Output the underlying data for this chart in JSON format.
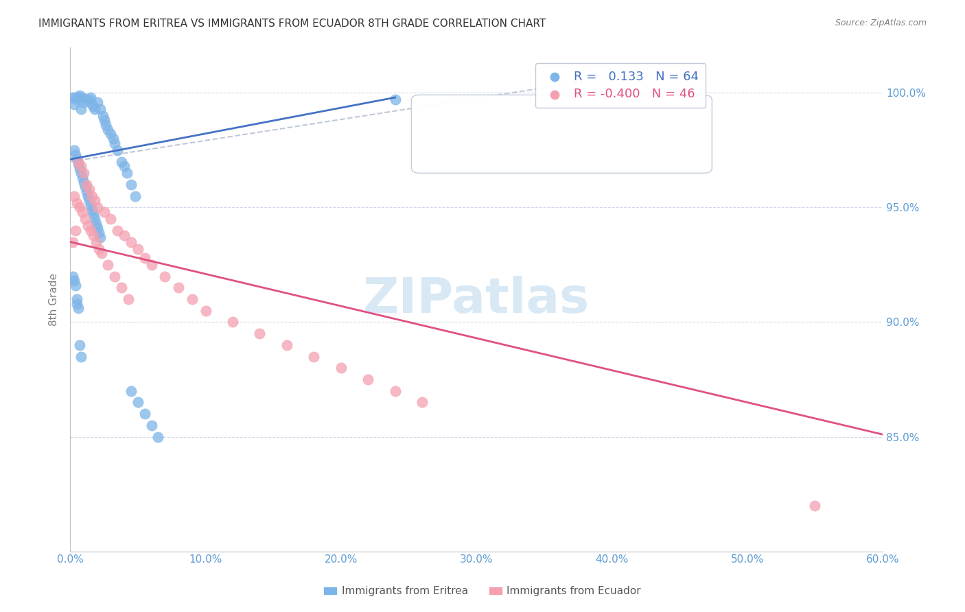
{
  "title": "IMMIGRANTS FROM ERITREA VS IMMIGRANTS FROM ECUADOR 8TH GRADE CORRELATION CHART",
  "source_text": "Source: ZipAtlas.com",
  "xlabel": "",
  "ylabel": "8th Grade",
  "x_tick_labels": [
    "0.0%",
    "10.0%",
    "20.0%",
    "30.0%",
    "40.0%",
    "50.0%",
    "60.0%"
  ],
  "x_tick_values": [
    0.0,
    0.1,
    0.2,
    0.3,
    0.4,
    0.5,
    0.6
  ],
  "y_tick_labels": [
    "85.0%",
    "90.0%",
    "95.0%",
    "100.0%"
  ],
  "y_tick_values": [
    0.85,
    0.9,
    0.95,
    1.0
  ],
  "xlim": [
    0.0,
    0.6
  ],
  "ylim": [
    0.8,
    1.02
  ],
  "legend_eritrea_R": "0.133",
  "legend_eritrea_N": "64",
  "legend_ecuador_R": "-0.400",
  "legend_ecuador_N": "46",
  "color_eritrea": "#7EB5E8",
  "color_ecuador": "#F4A0B0",
  "color_eritrea_line": "#4472C4",
  "color_ecuador_line": "#E05080",
  "color_trendline_dashed": "#C0C8D8",
  "color_axis_labels": "#5B9BD5",
  "color_ylabel": "#808080",
  "watermark_text": "ZIPatlas",
  "watermark_color": "#D8E8F4",
  "eritrea_x": [
    0.002,
    0.003,
    0.004,
    0.005,
    0.006,
    0.007,
    0.008,
    0.009,
    0.01,
    0.012,
    0.014,
    0.015,
    0.016,
    0.017,
    0.018,
    0.02,
    0.022,
    0.024,
    0.025,
    0.026,
    0.028,
    0.03,
    0.032,
    0.033,
    0.035,
    0.038,
    0.04,
    0.042,
    0.045,
    0.048,
    0.003,
    0.004,
    0.005,
    0.006,
    0.007,
    0.008,
    0.009,
    0.01,
    0.011,
    0.012,
    0.013,
    0.014,
    0.015,
    0.016,
    0.017,
    0.018,
    0.019,
    0.02,
    0.021,
    0.022,
    0.002,
    0.003,
    0.004,
    0.005,
    0.24,
    0.005,
    0.006,
    0.007,
    0.008,
    0.045,
    0.05,
    0.055,
    0.06,
    0.065
  ],
  "eritrea_y": [
    0.998,
    0.995,
    0.998,
    0.997,
    0.998,
    0.999,
    0.993,
    0.998,
    0.996,
    0.997,
    0.997,
    0.998,
    0.995,
    0.994,
    0.993,
    0.996,
    0.993,
    0.99,
    0.988,
    0.986,
    0.984,
    0.982,
    0.98,
    0.978,
    0.975,
    0.97,
    0.968,
    0.965,
    0.96,
    0.955,
    0.975,
    0.973,
    0.971,
    0.969,
    0.967,
    0.965,
    0.963,
    0.961,
    0.959,
    0.957,
    0.955,
    0.953,
    0.951,
    0.949,
    0.947,
    0.945,
    0.943,
    0.941,
    0.939,
    0.937,
    0.92,
    0.918,
    0.916,
    0.91,
    0.997,
    0.908,
    0.906,
    0.89,
    0.885,
    0.87,
    0.865,
    0.86,
    0.855,
    0.85
  ],
  "ecuador_x": [
    0.002,
    0.004,
    0.006,
    0.008,
    0.01,
    0.012,
    0.014,
    0.016,
    0.018,
    0.02,
    0.025,
    0.03,
    0.035,
    0.04,
    0.045,
    0.05,
    0.055,
    0.06,
    0.07,
    0.08,
    0.09,
    0.1,
    0.12,
    0.14,
    0.16,
    0.18,
    0.2,
    0.22,
    0.24,
    0.26,
    0.003,
    0.005,
    0.007,
    0.009,
    0.011,
    0.013,
    0.015,
    0.017,
    0.019,
    0.021,
    0.023,
    0.028,
    0.033,
    0.038,
    0.043,
    0.55
  ],
  "ecuador_y": [
    0.935,
    0.94,
    0.97,
    0.968,
    0.965,
    0.96,
    0.958,
    0.955,
    0.953,
    0.95,
    0.948,
    0.945,
    0.94,
    0.938,
    0.935,
    0.932,
    0.928,
    0.925,
    0.92,
    0.915,
    0.91,
    0.905,
    0.9,
    0.895,
    0.89,
    0.885,
    0.88,
    0.875,
    0.87,
    0.865,
    0.955,
    0.952,
    0.95,
    0.948,
    0.945,
    0.942,
    0.94,
    0.938,
    0.935,
    0.932,
    0.93,
    0.925,
    0.92,
    0.915,
    0.91,
    0.82
  ],
  "eritrea_line_x": [
    0.0,
    0.24
  ],
  "eritrea_line_y": [
    0.971,
    0.998
  ],
  "ecuador_line_x": [
    0.0,
    0.6
  ],
  "ecuador_line_y": [
    0.935,
    0.851
  ],
  "dashed_line_x": [
    0.0,
    0.38
  ],
  "dashed_line_y": [
    0.97,
    1.005
  ]
}
